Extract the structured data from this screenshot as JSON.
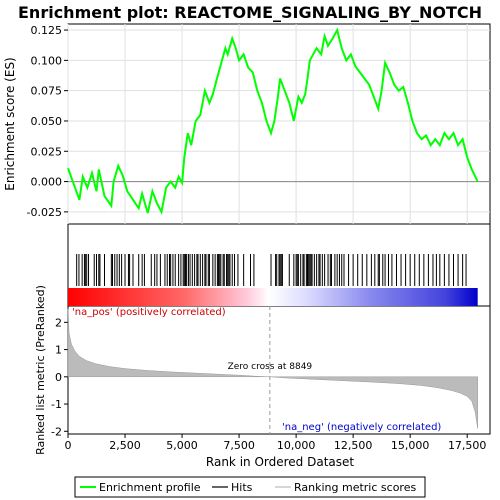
{
  "chart_data": {
    "type": "line",
    "title": "Enrichment plot: REACTOME_SIGNALING_BY_NOTCH",
    "xlabel": "Rank in Ordered Dataset",
    "xlim": [
      0,
      18500
    ],
    "x_ticks": [
      "0",
      "2,500",
      "5,000",
      "7,500",
      "10,000",
      "12,500",
      "15,000",
      "17,500"
    ],
    "x_tick_values": [
      0,
      2500,
      5000,
      7500,
      10000,
      12500,
      15000,
      17500
    ],
    "top_panel": {
      "ylabel": "Enrichment score (ES)",
      "ylim": [
        -0.035,
        0.13
      ],
      "y_ticks": [
        "-0.025",
        "0.000",
        "0.025",
        "0.050",
        "0.075",
        "0.100",
        "0.125"
      ],
      "y_tick_values": [
        -0.025,
        0.0,
        0.025,
        0.05,
        0.075,
        0.1,
        0.125
      ],
      "grid": true,
      "series": {
        "name": "Enrichment profile",
        "color": "#00ff00",
        "x": [
          0,
          500,
          650,
          850,
          1050,
          1250,
          1350,
          1600,
          1900,
          2000,
          2200,
          2400,
          2600,
          2850,
          3100,
          3250,
          3500,
          3700,
          3900,
          4100,
          4300,
          4500,
          4700,
          4850,
          5000,
          5100,
          5250,
          5400,
          5600,
          5800,
          6000,
          6200,
          6350,
          6600,
          6750,
          6900,
          7000,
          7200,
          7350,
          7500,
          7700,
          7900,
          8100,
          8300,
          8500,
          8700,
          8900,
          9050,
          9200,
          9300,
          9500,
          9700,
          9900,
          10100,
          10250,
          10400,
          10500,
          10600,
          10750,
          10900,
          11100,
          11250,
          11400,
          11600,
          11800,
          12000,
          12200,
          12400,
          12600,
          12800,
          13000,
          13200,
          13400,
          13600,
          13750,
          13900,
          14100,
          14300,
          14500,
          14700,
          14900,
          15100,
          15300,
          15500,
          15700,
          15900,
          16100,
          16300,
          16500,
          16700,
          16900,
          17100,
          17300,
          17500,
          17700,
          17960
        ],
        "y": [
          0.011,
          -0.015,
          0.004,
          -0.005,
          0.007,
          -0.008,
          0.01,
          -0.012,
          -0.02,
          0.0,
          0.013,
          0.005,
          -0.008,
          -0.015,
          -0.022,
          -0.01,
          -0.026,
          -0.008,
          -0.018,
          -0.025,
          -0.005,
          0.0,
          -0.005,
          0.004,
          -0.001,
          0.02,
          0.04,
          0.03,
          0.05,
          0.055,
          0.075,
          0.065,
          0.072,
          0.09,
          0.1,
          0.11,
          0.105,
          0.118,
          0.11,
          0.1,
          0.105,
          0.094,
          0.09,
          0.075,
          0.065,
          0.05,
          0.04,
          0.05,
          0.07,
          0.085,
          0.075,
          0.065,
          0.05,
          0.07,
          0.065,
          0.072,
          0.085,
          0.1,
          0.105,
          0.11,
          0.105,
          0.12,
          0.112,
          0.118,
          0.125,
          0.11,
          0.1,
          0.105,
          0.095,
          0.09,
          0.085,
          0.08,
          0.07,
          0.06,
          0.075,
          0.098,
          0.09,
          0.08,
          0.075,
          0.078,
          0.065,
          0.05,
          0.04,
          0.035,
          0.038,
          0.03,
          0.035,
          0.03,
          0.04,
          0.035,
          0.04,
          0.03,
          0.035,
          0.02,
          0.01,
          0.0
        ]
      }
    },
    "hits_panel": {
      "name": "Hits",
      "positions": [
        380,
        480,
        620,
        720,
        760,
        820,
        900,
        1150,
        1250,
        1350,
        1400,
        1600,
        1900,
        1950,
        2050,
        2150,
        2250,
        2350,
        2500,
        2650,
        2700,
        2850,
        3100,
        3250,
        3350,
        3650,
        3800,
        3900,
        4050,
        4250,
        4350,
        4450,
        4500,
        4600,
        4700,
        4850,
        4950,
        5050,
        5100,
        5150,
        5200,
        5280,
        5350,
        5450,
        5550,
        5650,
        5700,
        5800,
        5900,
        6000,
        6050,
        6150,
        6200,
        6350,
        6450,
        6550,
        6600,
        6650,
        6700,
        6800,
        6850,
        6950,
        7000,
        7050,
        7100,
        7200,
        7300,
        7450,
        7700,
        8000,
        8150,
        8900,
        9100,
        9150,
        9250,
        9300,
        9350,
        9400,
        9700,
        9900,
        10000,
        10050,
        10100,
        10200,
        10300,
        10350,
        10450,
        10500,
        10550,
        10600,
        10650,
        10700,
        10800,
        10900,
        11000,
        11050,
        11150,
        11250,
        11400,
        11500,
        11550,
        11700,
        11800,
        11900,
        12000,
        12100,
        12300,
        12500,
        12700,
        12900,
        13100,
        13300,
        13450,
        13600,
        13650,
        13800,
        13900,
        14050,
        14200,
        14400,
        14600,
        14800,
        15000,
        15200,
        15400,
        15600,
        15800,
        16000,
        16150,
        16300,
        16500,
        16700,
        16900,
        17100,
        17300,
        17450
      ]
    },
    "metric_panel": {
      "name": "Ranking metric scores",
      "ylabel": "Ranked list metric (PreRanked)",
      "ylim": [
        -2.1,
        2.6
      ],
      "y_ticks": [
        "-2",
        "-1",
        "0",
        "1",
        "2"
      ],
      "y_tick_values": [
        -2,
        -1,
        0,
        1,
        2
      ],
      "zero_cross": 8849,
      "zero_cross_label": "Zero cross at 8849",
      "pos_label": "'na_pos' (positively correlated)",
      "neg_label": "'na_neg' (negatively correlated)",
      "x": [
        0,
        50,
        150,
        300,
        500,
        800,
        1200,
        1800,
        2500,
        3500,
        4500,
        5500,
        6500,
        7500,
        8300,
        8849,
        9500,
        10500,
        11500,
        12500,
        13500,
        14500,
        15500,
        16200,
        16800,
        17200,
        17500,
        17700,
        17850,
        17960
      ],
      "y": [
        2.5,
        1.6,
        1.2,
        0.95,
        0.75,
        0.6,
        0.48,
        0.38,
        0.3,
        0.23,
        0.18,
        0.14,
        0.1,
        0.06,
        0.02,
        0.0,
        -0.04,
        -0.08,
        -0.12,
        -0.16,
        -0.2,
        -0.25,
        -0.32,
        -0.4,
        -0.5,
        -0.6,
        -0.72,
        -0.9,
        -1.3,
        -1.9
      ]
    },
    "legend": [
      {
        "label": "Enrichment profile",
        "color": "#00ff00"
      },
      {
        "label": "Hits",
        "color": "#000000"
      },
      {
        "label": "Ranking metric scores",
        "color": "#bbbbbb"
      }
    ]
  }
}
